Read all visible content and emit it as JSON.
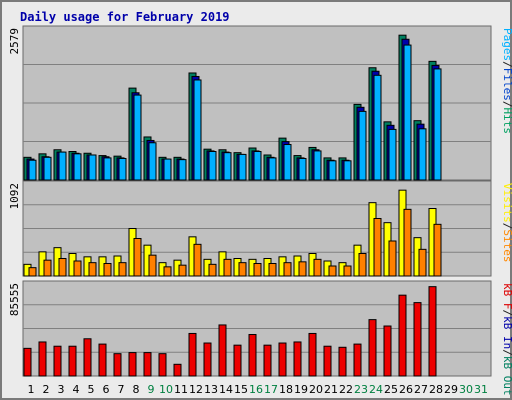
{
  "chart_data": {
    "type": "bar",
    "title": "Daily usage for February 2019",
    "days": [
      "1",
      "2",
      "3",
      "4",
      "5",
      "6",
      "7",
      "8",
      "9",
      "10",
      "11",
      "12",
      "13",
      "14",
      "15",
      "16",
      "17",
      "18",
      "19",
      "20",
      "21",
      "22",
      "23",
      "24",
      "25",
      "26",
      "27",
      "28",
      "29",
      "30",
      "31"
    ],
    "weekend_days": [
      "9",
      "10",
      "16",
      "17",
      "23",
      "24",
      "30",
      "31"
    ],
    "panels": [
      {
        "id": "pages_files_hits",
        "max_label": "2579",
        "ymax": 2579,
        "series_labels": [
          "Pages",
          "/",
          "Files",
          "/",
          "Hits"
        ],
        "series_label_colors": [
          "#00b0ff",
          "#222222",
          "#0044cc",
          "#222222",
          "#00a060"
        ],
        "series": [
          {
            "name": "Hits",
            "color": "#008060",
            "values": [
              390,
              450,
              520,
              490,
              460,
              420,
              410,
              1580,
              740,
              390,
              390,
              1840,
              530,
              520,
              470,
              550,
              430,
              720,
              420,
              560,
              380,
              380,
              1300,
              1930,
              1000,
              2490,
              1020,
              2040
            ]
          },
          {
            "name": "Files",
            "color": "#0000aa",
            "values": [
              360,
              400,
              480,
              460,
              430,
              400,
              380,
              1500,
              680,
              360,
              360,
              1780,
              500,
              480,
              440,
              500,
              390,
              660,
              380,
              520,
              340,
              340,
              1250,
              1870,
              940,
              2420,
              960,
              1970
            ]
          },
          {
            "name": "Pages",
            "color": "#00b0ff",
            "values": [
              340,
              390,
              480,
              450,
              430,
              380,
              370,
              1460,
              640,
              360,
              350,
              1720,
              490,
              470,
              440,
              490,
              380,
              610,
              370,
              500,
              330,
              330,
              1180,
              1800,
              870,
              2320,
              880,
              1910
            ]
          }
        ]
      },
      {
        "id": "visits_sites",
        "max_label": "1092",
        "ymax": 1092,
        "series_labels": [
          "Visits",
          "/",
          "Sites"
        ],
        "series_label_colors": [
          "#ffee00",
          "#222222",
          "#ff8800"
        ],
        "series": [
          {
            "name": "Visits",
            "color": "#ffff00",
            "values": [
              140,
              290,
              340,
              270,
              230,
              230,
              240,
              570,
              370,
              160,
              190,
              470,
              200,
              290,
              210,
              200,
              210,
              230,
              240,
              270,
              180,
              160,
              370,
              880,
              640,
              1030,
              460,
              810
            ]
          },
          {
            "name": "Sites",
            "color": "#ff8000",
            "values": [
              100,
              190,
              210,
              180,
              160,
              150,
              160,
              450,
              250,
              110,
              130,
              380,
              140,
              200,
              160,
              150,
              150,
              160,
              170,
              200,
              120,
              120,
              270,
              690,
              420,
              800,
              320,
              620
            ]
          }
        ]
      },
      {
        "id": "kbytes",
        "max_label": "85555",
        "ymax": 85555,
        "series_labels": [
          "kB F",
          "/",
          "kB In",
          "/",
          "kB Out"
        ],
        "series_label_colors": [
          "#dd0000",
          "#222222",
          "#0000aa",
          "#222222",
          "#008060"
        ],
        "series": [
          {
            "name": "kB F",
            "color": "#ee0000",
            "values": [
              26000,
              32000,
              28000,
              28000,
              35000,
              30000,
              21000,
              22000,
              22000,
              21000,
              11000,
              40000,
              31000,
              48000,
              29000,
              39000,
              29000,
              31000,
              32000,
              40000,
              28000,
              27000,
              30000,
              53000,
              47000,
              76000,
              69000,
              84000
            ]
          }
        ]
      }
    ]
  }
}
